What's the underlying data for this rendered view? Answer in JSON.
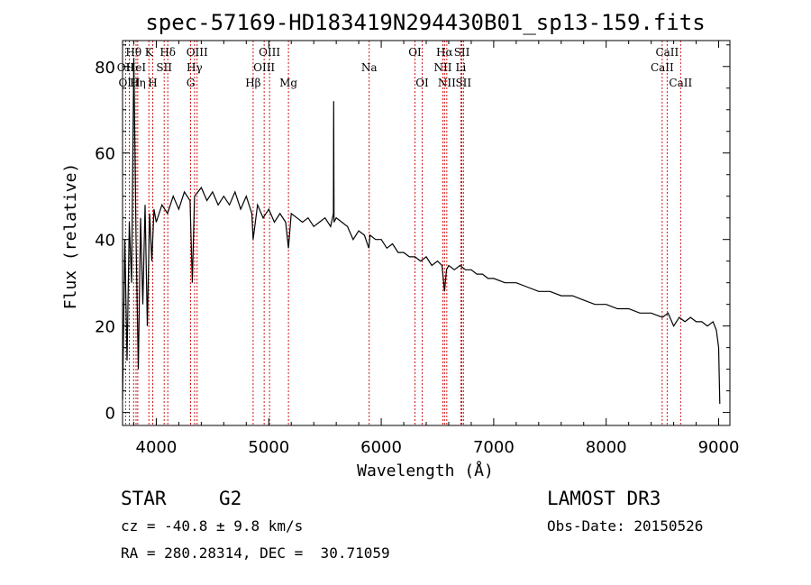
{
  "chart_data": {
    "type": "line",
    "title": "spec-57169-HD183419N294430B01_sp13-159.fits",
    "xlabel": "Wavelength (Å)",
    "ylabel": "Flux (relative)",
    "xlim": [
      3700,
      9100
    ],
    "ylim": [
      -3,
      86
    ],
    "xticks": [
      4000,
      5000,
      6000,
      7000,
      8000,
      9000
    ],
    "yticks": [
      0,
      20,
      40,
      60,
      80
    ],
    "series": [
      {
        "name": "flux",
        "x": [
          3700,
          3720,
          3740,
          3760,
          3780,
          3800,
          3820,
          3840,
          3860,
          3880,
          3900,
          3920,
          3940,
          3960,
          3980,
          4000,
          4050,
          4100,
          4150,
          4200,
          4250,
          4300,
          4320,
          4340,
          4400,
          4450,
          4500,
          4550,
          4600,
          4650,
          4700,
          4750,
          4800,
          4850,
          4861,
          4900,
          4950,
          5000,
          5050,
          5100,
          5150,
          5175,
          5200,
          5250,
          5300,
          5350,
          5400,
          5450,
          5500,
          5550,
          5575,
          5577,
          5580,
          5600,
          5650,
          5700,
          5750,
          5800,
          5850,
          5890,
          5900,
          5950,
          6000,
          6050,
          6100,
          6150,
          6200,
          6250,
          6300,
          6350,
          6400,
          6450,
          6500,
          6540,
          6563,
          6580,
          6600,
          6650,
          6700,
          6750,
          6800,
          6850,
          6900,
          6950,
          7000,
          7100,
          7200,
          7300,
          7400,
          7500,
          7600,
          7700,
          7800,
          7900,
          8000,
          8100,
          8200,
          8300,
          8400,
          8500,
          8550,
          8600,
          8650,
          8700,
          8750,
          8800,
          8850,
          8900,
          8950,
          8980,
          9000,
          9010
        ],
        "y": [
          3,
          40,
          12,
          44,
          30,
          82,
          40,
          10,
          45,
          25,
          48,
          20,
          46,
          35,
          47,
          44,
          48,
          46,
          50,
          47,
          51,
          49,
          30,
          50,
          52,
          49,
          51,
          48,
          50,
          48,
          51,
          47,
          50,
          46,
          40,
          48,
          45,
          47,
          44,
          46,
          44,
          38,
          46,
          45,
          44,
          45,
          43,
          44,
          45,
          43,
          46,
          72,
          44,
          45,
          44,
          43,
          40,
          42,
          41,
          38,
          41,
          40,
          40,
          38,
          39,
          37,
          37,
          36,
          36,
          35,
          36,
          34,
          35,
          34,
          28,
          33,
          34,
          33,
          34,
          33,
          33,
          32,
          32,
          31,
          31,
          30,
          30,
          29,
          28,
          28,
          27,
          27,
          26,
          25,
          25,
          24,
          24,
          23,
          23,
          22,
          23,
          20,
          22,
          21,
          22,
          21,
          21,
          20,
          21,
          19,
          15,
          2
        ]
      }
    ],
    "spectral_lines": [
      {
        "label": "OII",
        "x": 3727,
        "row": 1
      },
      {
        "label": "Hθ",
        "x": 3798,
        "row": 0
      },
      {
        "label": "OIII",
        "x": 3760,
        "row": 2
      },
      {
        "label": "HeI",
        "x": 3820,
        "row": 1
      },
      {
        "label": "Hη",
        "x": 3835,
        "row": 2
      },
      {
        "label": "K",
        "x": 3934,
        "row": 0
      },
      {
        "label": "H",
        "x": 3968,
        "row": 2
      },
      {
        "label": "SII",
        "x": 4070,
        "row": 1
      },
      {
        "label": "Hδ",
        "x": 4102,
        "row": 0
      },
      {
        "label": "OIII",
        "x": 4363,
        "row": 0
      },
      {
        "label": "Hγ",
        "x": 4340,
        "row": 1
      },
      {
        "label": "G",
        "x": 4305,
        "row": 2
      },
      {
        "label": "Hβ",
        "x": 4861,
        "row": 2
      },
      {
        "label": "OIII",
        "x": 5007,
        "row": 0
      },
      {
        "label": "OIII",
        "x": 4959,
        "row": 1
      },
      {
        "label": "Mg",
        "x": 5175,
        "row": 2
      },
      {
        "label": "Na",
        "x": 5893,
        "row": 1
      },
      {
        "label": "OI",
        "x": 6300,
        "row": 0
      },
      {
        "label": "OI",
        "x": 6364,
        "row": 2
      },
      {
        "label": "Hα",
        "x": 6563,
        "row": 0
      },
      {
        "label": "NII",
        "x": 6548,
        "row": 1
      },
      {
        "label": "NII",
        "x": 6583,
        "row": 2
      },
      {
        "label": "SII",
        "x": 6717,
        "row": 0
      },
      {
        "label": "Li",
        "x": 6708,
        "row": 1
      },
      {
        "label": "SII",
        "x": 6731,
        "row": 2
      },
      {
        "label": "CaII",
        "x": 8542,
        "row": 0
      },
      {
        "label": "CaII",
        "x": 8498,
        "row": 1
      },
      {
        "label": "CaII",
        "x": 8662,
        "row": 2
      }
    ]
  },
  "info": {
    "object_class": "STAR",
    "subclass": "G2",
    "survey": "LAMOST DR3",
    "cz": "cz = -40.8 ± 9.8 km/s",
    "obs_date": "Obs-Date: 20150526",
    "coords": "RA = 280.28314, DEC =  30.71059"
  },
  "colors": {
    "line_marker": "#cc0000",
    "spectrum": "#000000"
  }
}
